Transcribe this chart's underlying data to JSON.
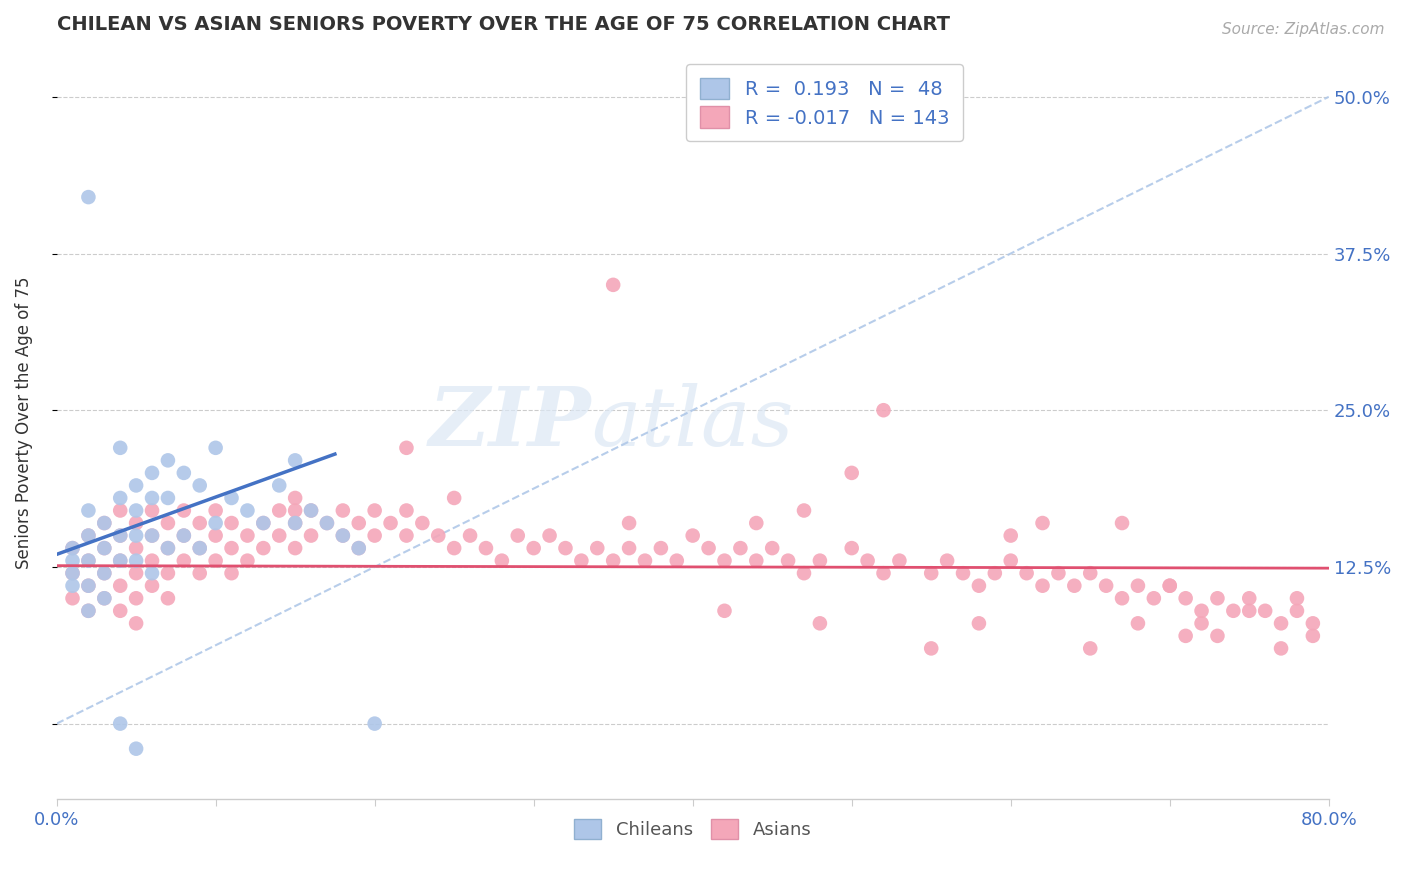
{
  "title": "CHILEAN VS ASIAN SENIORS POVERTY OVER THE AGE OF 75 CORRELATION CHART",
  "source": "Source: ZipAtlas.com",
  "ylabel": "Seniors Poverty Over the Age of 75",
  "xlim": [
    0.0,
    0.8
  ],
  "ylim": [
    -0.06,
    0.54
  ],
  "yticks": [
    0.0,
    0.125,
    0.25,
    0.375,
    0.5
  ],
  "ytick_labels": [
    "",
    "12.5%",
    "25.0%",
    "37.5%",
    "50.0%"
  ],
  "xticks": [
    0.0,
    0.1,
    0.2,
    0.3,
    0.4,
    0.5,
    0.6,
    0.7,
    0.8
  ],
  "xtick_labels": [
    "0.0%",
    "",
    "",
    "",
    "",
    "",
    "",
    "",
    "80.0%"
  ],
  "chilean_color": "#aec6e8",
  "asian_color": "#f4a7b9",
  "chilean_line_color": "#4472c4",
  "asian_line_color": "#e05070",
  "diag_line_color": "#b0c8e8",
  "r_chilean": 0.193,
  "n_chilean": 48,
  "r_asian": -0.017,
  "n_asian": 143,
  "tick_label_color": "#4472c4",
  "chilean_x": [
    0.01,
    0.01,
    0.01,
    0.01,
    0.02,
    0.02,
    0.02,
    0.02,
    0.02,
    0.02,
    0.03,
    0.03,
    0.03,
    0.03,
    0.04,
    0.04,
    0.04,
    0.04,
    0.04,
    0.05,
    0.05,
    0.05,
    0.05,
    0.05,
    0.06,
    0.06,
    0.06,
    0.06,
    0.07,
    0.07,
    0.07,
    0.08,
    0.08,
    0.09,
    0.09,
    0.1,
    0.1,
    0.11,
    0.12,
    0.13,
    0.14,
    0.15,
    0.15,
    0.16,
    0.17,
    0.18,
    0.19,
    0.2
  ],
  "chilean_y": [
    0.14,
    0.13,
    0.12,
    0.11,
    0.42,
    0.17,
    0.15,
    0.13,
    0.11,
    0.09,
    0.16,
    0.14,
    0.12,
    0.1,
    0.22,
    0.18,
    0.15,
    0.13,
    0.0,
    0.19,
    0.17,
    0.15,
    0.13,
    -0.02,
    0.2,
    0.18,
    0.15,
    0.12,
    0.21,
    0.18,
    0.14,
    0.2,
    0.15,
    0.19,
    0.14,
    0.22,
    0.16,
    0.18,
    0.17,
    0.16,
    0.19,
    0.21,
    0.16,
    0.17,
    0.16,
    0.15,
    0.14,
    0.0
  ],
  "asian_x": [
    0.01,
    0.01,
    0.01,
    0.02,
    0.02,
    0.02,
    0.02,
    0.03,
    0.03,
    0.03,
    0.03,
    0.04,
    0.04,
    0.04,
    0.04,
    0.04,
    0.05,
    0.05,
    0.05,
    0.05,
    0.05,
    0.06,
    0.06,
    0.06,
    0.06,
    0.07,
    0.07,
    0.07,
    0.07,
    0.08,
    0.08,
    0.08,
    0.09,
    0.09,
    0.09,
    0.1,
    0.1,
    0.1,
    0.11,
    0.11,
    0.11,
    0.12,
    0.12,
    0.13,
    0.13,
    0.14,
    0.14,
    0.15,
    0.15,
    0.15,
    0.16,
    0.16,
    0.17,
    0.18,
    0.18,
    0.19,
    0.19,
    0.2,
    0.2,
    0.21,
    0.22,
    0.22,
    0.23,
    0.24,
    0.25,
    0.26,
    0.27,
    0.28,
    0.29,
    0.3,
    0.31,
    0.32,
    0.33,
    0.34,
    0.35,
    0.36,
    0.37,
    0.38,
    0.39,
    0.4,
    0.41,
    0.42,
    0.43,
    0.44,
    0.45,
    0.46,
    0.47,
    0.48,
    0.5,
    0.51,
    0.52,
    0.53,
    0.55,
    0.56,
    0.57,
    0.58,
    0.59,
    0.6,
    0.61,
    0.62,
    0.63,
    0.64,
    0.65,
    0.66,
    0.67,
    0.68,
    0.69,
    0.7,
    0.71,
    0.72,
    0.73,
    0.74,
    0.75,
    0.76,
    0.77,
    0.78,
    0.79,
    0.5,
    0.35,
    0.22,
    0.44,
    0.67,
    0.72,
    0.58,
    0.48,
    0.52,
    0.62,
    0.7,
    0.75,
    0.78,
    0.15,
    0.25,
    0.36,
    0.47,
    0.6,
    0.68,
    0.73,
    0.79,
    0.42,
    0.55,
    0.65,
    0.71,
    0.77
  ],
  "asian_y": [
    0.14,
    0.12,
    0.1,
    0.15,
    0.13,
    0.11,
    0.09,
    0.16,
    0.14,
    0.12,
    0.1,
    0.17,
    0.15,
    0.13,
    0.11,
    0.09,
    0.16,
    0.14,
    0.12,
    0.1,
    0.08,
    0.17,
    0.15,
    0.13,
    0.11,
    0.16,
    0.14,
    0.12,
    0.1,
    0.17,
    0.15,
    0.13,
    0.16,
    0.14,
    0.12,
    0.17,
    0.15,
    0.13,
    0.16,
    0.14,
    0.12,
    0.15,
    0.13,
    0.16,
    0.14,
    0.17,
    0.15,
    0.18,
    0.16,
    0.14,
    0.17,
    0.15,
    0.16,
    0.17,
    0.15,
    0.16,
    0.14,
    0.17,
    0.15,
    0.16,
    0.17,
    0.15,
    0.16,
    0.15,
    0.14,
    0.15,
    0.14,
    0.13,
    0.15,
    0.14,
    0.15,
    0.14,
    0.13,
    0.14,
    0.13,
    0.14,
    0.13,
    0.14,
    0.13,
    0.15,
    0.14,
    0.13,
    0.14,
    0.13,
    0.14,
    0.13,
    0.12,
    0.13,
    0.14,
    0.13,
    0.12,
    0.13,
    0.12,
    0.13,
    0.12,
    0.11,
    0.12,
    0.13,
    0.12,
    0.11,
    0.12,
    0.11,
    0.12,
    0.11,
    0.1,
    0.11,
    0.1,
    0.11,
    0.1,
    0.09,
    0.1,
    0.09,
    0.1,
    0.09,
    0.08,
    0.09,
    0.08,
    0.2,
    0.35,
    0.22,
    0.16,
    0.16,
    0.08,
    0.08,
    0.08,
    0.25,
    0.16,
    0.11,
    0.09,
    0.1,
    0.17,
    0.18,
    0.16,
    0.17,
    0.15,
    0.08,
    0.07,
    0.07,
    0.09,
    0.06,
    0.06,
    0.07,
    0.06
  ]
}
